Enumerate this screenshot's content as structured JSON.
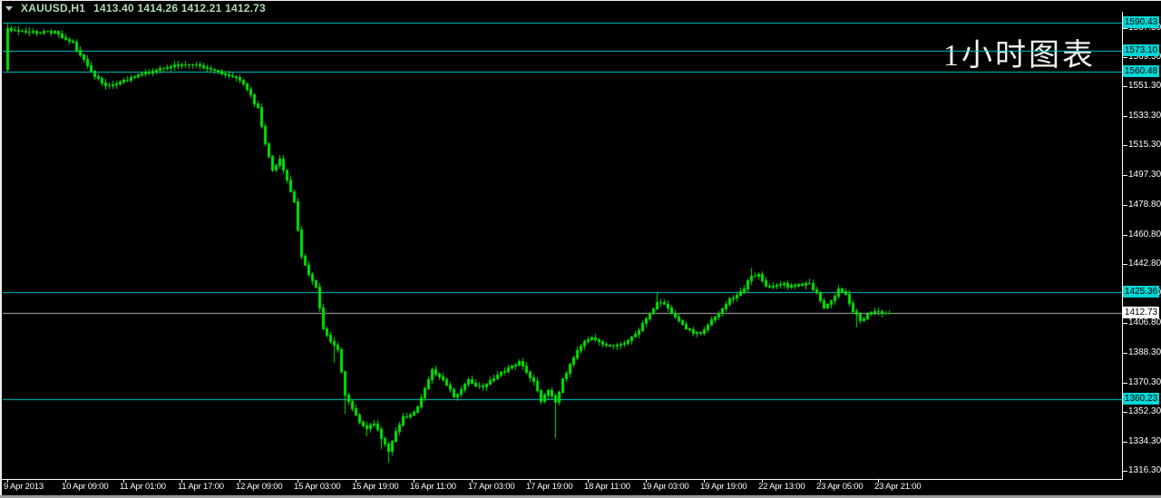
{
  "header": {
    "symbol": "XAUUSD,H1",
    "quote_text": "1413.40 1414.26 1412.21 1412.73",
    "watermark": "1小时图表",
    "dropdown_icon": "symbol-dropdown-triangle"
  },
  "colors": {
    "background": "#000000",
    "candle": "#00E400",
    "hline": "#00CBCB",
    "hline_tag_bg": "#00D6D6",
    "current_line": "#B4B4B4",
    "current_tag_bg": "#FFFFFF",
    "axis_text": "#FFFFFF",
    "title_text": "#AFDCAF",
    "watermark_text": "#F2F2F2"
  },
  "chart_data": {
    "type": "candlestick",
    "symbol": "XAUUSD",
    "timeframe": "H1",
    "title": "XAUUSD,H1",
    "quote": {
      "open": 1413.4,
      "high": 1414.26,
      "low": 1412.21,
      "close": 1412.73
    },
    "ylim": [
      1311.3,
      1594.85
    ],
    "grid": false,
    "legend": "none",
    "price_axis_ticks": [
      1587.3,
      1569.3,
      1551.3,
      1533.3,
      1515.3,
      1497.3,
      1478.8,
      1460.8,
      1442.8,
      1424.8,
      1406.8,
      1388.3,
      1370.3,
      1352.3,
      1334.3,
      1316.3
    ],
    "time_axis_ticks": [
      "9 Apr 2013",
      "10 Apr 09:00",
      "11 Apr 01:00",
      "11 Apr 17:00",
      "12 Apr 09:00",
      "15 Apr 03:00",
      "15 Apr 19:00",
      "16 Apr 11:00",
      "17 Apr 03:00",
      "17 Apr 19:00",
      "18 Apr 11:00",
      "19 Apr 03:00",
      "19 Apr 19:00",
      "22 Apr 13:00",
      "23 Apr 05:00",
      "23 Apr 21:00"
    ],
    "hlines": [
      1590.43,
      1573.1,
      1560.48,
      1425.36,
      1360.23
    ],
    "current_price": 1412.73,
    "candles": {
      "count": 244,
      "hours_per_label": 16,
      "seed": 20130423,
      "first": {
        "open": 1562.0,
        "close": 1587.0,
        "high": 1590.0,
        "low": 1561.0
      },
      "keypoints": [
        [
          0,
          1586
        ],
        [
          6,
          1585
        ],
        [
          13,
          1584.5
        ],
        [
          18,
          1578
        ],
        [
          23,
          1561
        ],
        [
          26,
          1554
        ],
        [
          28,
          1551.5
        ],
        [
          31,
          1554
        ],
        [
          34,
          1557
        ],
        [
          38,
          1560
        ],
        [
          43,
          1563
        ],
        [
          48,
          1565
        ],
        [
          53,
          1564
        ],
        [
          58,
          1561
        ],
        [
          62,
          1558
        ],
        [
          64,
          1556
        ],
        [
          67,
          1546
        ],
        [
          69,
          1538
        ],
        [
          71,
          1516
        ],
        [
          73,
          1501
        ],
        [
          75,
          1507
        ],
        [
          77,
          1495
        ],
        [
          79,
          1481
        ],
        [
          81,
          1448
        ],
        [
          83,
          1437
        ],
        [
          85,
          1428
        ],
        [
          87,
          1403
        ],
        [
          89,
          1396
        ],
        [
          91,
          1391
        ],
        [
          93,
          1363
        ],
        [
          95,
          1354
        ],
        [
          97,
          1347
        ],
        [
          99,
          1342
        ],
        [
          101,
          1346
        ],
        [
          103,
          1337
        ],
        [
          105,
          1329
        ],
        [
          107,
          1340
        ],
        [
          109,
          1349
        ],
        [
          111,
          1351
        ],
        [
          113,
          1355
        ],
        [
          115,
          1367
        ],
        [
          117,
          1378
        ],
        [
          119,
          1374
        ],
        [
          121,
          1369
        ],
        [
          123,
          1362
        ],
        [
          125,
          1366
        ],
        [
          127,
          1372
        ],
        [
          129,
          1369
        ],
        [
          131,
          1368
        ],
        [
          133,
          1372
        ],
        [
          135,
          1375
        ],
        [
          137,
          1378
        ],
        [
          139,
          1381
        ],
        [
          141,
          1383
        ],
        [
          143,
          1377
        ],
        [
          145,
          1371
        ],
        [
          147,
          1359
        ],
        [
          149,
          1366
        ],
        [
          151,
          1358
        ],
        [
          153,
          1372
        ],
        [
          155,
          1381
        ],
        [
          157,
          1390
        ],
        [
          159,
          1396
        ],
        [
          161,
          1398
        ],
        [
          163,
          1396
        ],
        [
          165,
          1393
        ],
        [
          167,
          1392
        ],
        [
          169,
          1394
        ],
        [
          171,
          1396
        ],
        [
          173,
          1400
        ],
        [
          175,
          1406
        ],
        [
          177,
          1413
        ],
        [
          179,
          1420
        ],
        [
          181,
          1419
        ],
        [
          183,
          1413
        ],
        [
          185,
          1408
        ],
        [
          187,
          1404
        ],
        [
          189,
          1401
        ],
        [
          191,
          1401
        ],
        [
          193,
          1406
        ],
        [
          195,
          1411
        ],
        [
          197,
          1416
        ],
        [
          199,
          1421
        ],
        [
          201,
          1424
        ],
        [
          203,
          1428
        ],
        [
          205,
          1436
        ],
        [
          207,
          1437
        ],
        [
          209,
          1430
        ],
        [
          211,
          1429
        ],
        [
          213,
          1431
        ],
        [
          215,
          1430
        ],
        [
          217,
          1430
        ],
        [
          219,
          1431
        ],
        [
          221,
          1431
        ],
        [
          223,
          1425
        ],
        [
          225,
          1416
        ],
        [
          227,
          1420
        ],
        [
          229,
          1427
        ],
        [
          231,
          1424
        ],
        [
          233,
          1414
        ],
        [
          235,
          1409
        ],
        [
          237,
          1412
        ],
        [
          239,
          1414
        ],
        [
          241,
          1413
        ],
        [
          243,
          1412.73
        ]
      ],
      "low_spikes": [
        [
          90,
          1383.0
        ],
        [
          93,
          1352.0
        ],
        [
          99,
          1338.0
        ],
        [
          103,
          1330.0
        ],
        [
          105,
          1321.9
        ],
        [
          151,
          1336.8
        ],
        [
          234,
          1404.5
        ]
      ],
      "high_spikes": [
        [
          179,
          1425.2
        ],
        [
          205,
          1440.7
        ]
      ]
    }
  }
}
